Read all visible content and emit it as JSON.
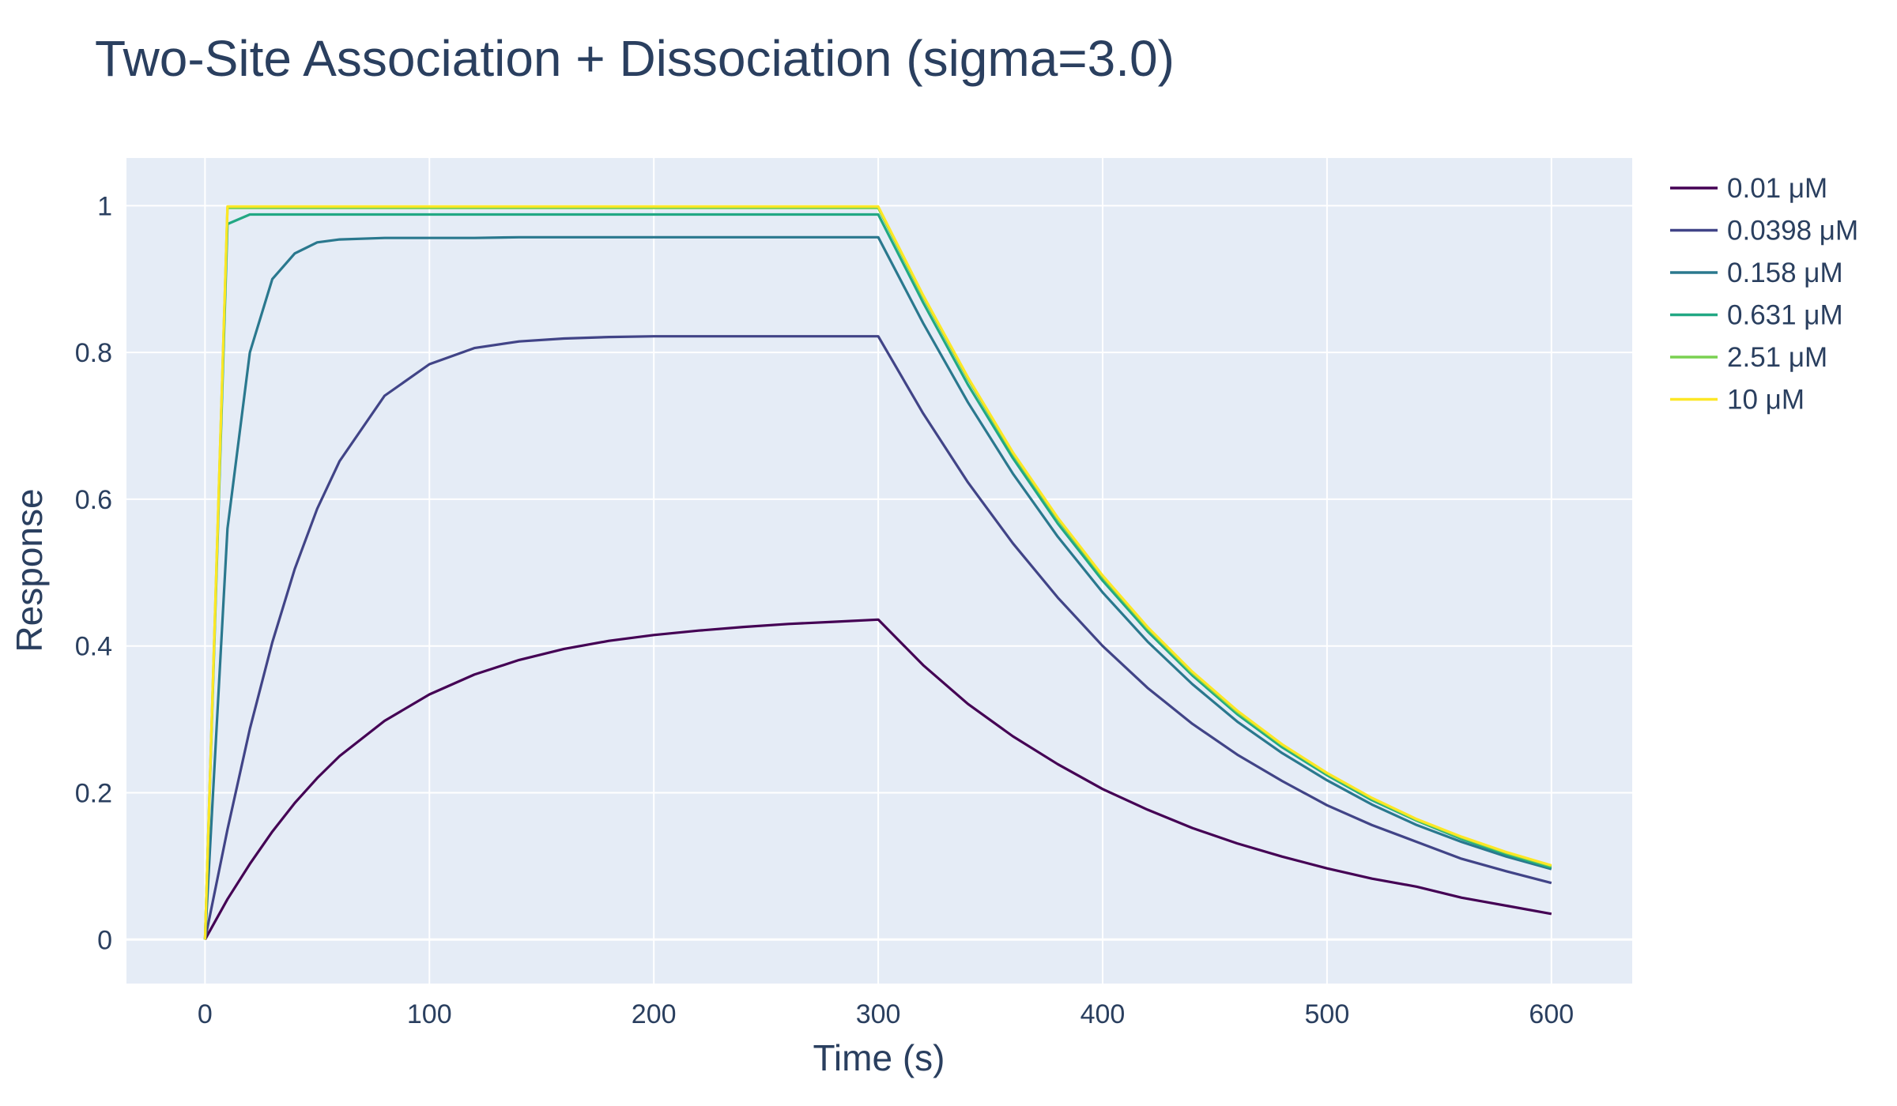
{
  "chart_data": {
    "type": "line",
    "title": "Two-Site Association + Dissociation (sigma=3.0)",
    "xlabel": "Time (s)",
    "ylabel": "Response",
    "xlim": [
      -35,
      636
    ],
    "ylim": [
      -0.06,
      1.065
    ],
    "x_ticks": [
      0,
      100,
      200,
      300,
      400,
      500,
      600
    ],
    "y_ticks": [
      0,
      0.2,
      0.4,
      0.6,
      0.8,
      1
    ],
    "x_tick_labels": [
      "0",
      "100",
      "200",
      "300",
      "400",
      "500",
      "600"
    ],
    "y_tick_labels": [
      "0",
      "0.2",
      "0.4",
      "0.6",
      "0.8",
      "1"
    ],
    "grid": true,
    "legend_position": "right",
    "colors": {
      "plot_background": "#e5ecf6",
      "grid": "#ffffff",
      "text": "#2a3f5f"
    },
    "x": [
      0,
      10,
      20,
      30,
      40,
      50,
      60,
      80,
      100,
      120,
      140,
      160,
      180,
      200,
      220,
      240,
      260,
      280,
      300,
      320,
      340,
      360,
      380,
      400,
      420,
      440,
      460,
      480,
      500,
      520,
      540,
      560,
      580,
      600
    ],
    "series": [
      {
        "name": "0.01 μM",
        "color": "#440154",
        "values": [
          0,
          0.055,
          0.103,
          0.147,
          0.186,
          0.22,
          0.25,
          0.298,
          0.334,
          0.361,
          0.381,
          0.396,
          0.407,
          0.415,
          0.421,
          0.426,
          0.43,
          0.433,
          0.436,
          0.374,
          0.321,
          0.277,
          0.239,
          0.205,
          0.177,
          0.152,
          0.131,
          0.113,
          0.097,
          0.083,
          0.072,
          0.057,
          0.046,
          0.035
        ]
      },
      {
        "name": "0.0398 μM",
        "color": "#414487",
        "values": [
          0,
          0.15,
          0.287,
          0.405,
          0.505,
          0.587,
          0.652,
          0.741,
          0.784,
          0.806,
          0.815,
          0.819,
          0.821,
          0.822,
          0.822,
          0.822,
          0.822,
          0.822,
          0.822,
          0.717,
          0.623,
          0.54,
          0.466,
          0.4,
          0.343,
          0.294,
          0.252,
          0.216,
          0.183,
          0.156,
          0.133,
          0.11,
          0.093,
          0.077
        ]
      },
      {
        "name": "0.158 μM",
        "color": "#2a788e",
        "values": [
          0,
          0.56,
          0.8,
          0.9,
          0.935,
          0.95,
          0.954,
          0.956,
          0.956,
          0.956,
          0.957,
          0.957,
          0.957,
          0.957,
          0.957,
          0.957,
          0.957,
          0.957,
          0.957,
          0.84,
          0.732,
          0.635,
          0.549,
          0.473,
          0.406,
          0.348,
          0.297,
          0.254,
          0.217,
          0.184,
          0.156,
          0.133,
          0.113,
          0.096
        ]
      },
      {
        "name": "0.631 μM",
        "color": "#22a884",
        "values": [
          0,
          0.975,
          0.988,
          0.988,
          0.988,
          0.988,
          0.988,
          0.988,
          0.988,
          0.988,
          0.988,
          0.988,
          0.988,
          0.988,
          0.988,
          0.988,
          0.988,
          0.988,
          0.988,
          0.868,
          0.756,
          0.656,
          0.567,
          0.489,
          0.42,
          0.36,
          0.307,
          0.262,
          0.224,
          0.19,
          0.162,
          0.137,
          0.116,
          0.098
        ]
      },
      {
        "name": "2.51 μM",
        "color": "#7ad151",
        "values": [
          0,
          0.997,
          0.997,
          0.997,
          0.997,
          0.997,
          0.997,
          0.997,
          0.997,
          0.997,
          0.997,
          0.997,
          0.997,
          0.997,
          0.997,
          0.997,
          0.997,
          0.997,
          0.997,
          0.876,
          0.764,
          0.662,
          0.573,
          0.494,
          0.424,
          0.363,
          0.31,
          0.265,
          0.226,
          0.192,
          0.163,
          0.139,
          0.118,
          0.1
        ]
      },
      {
        "name": "10 μM",
        "color": "#fde725",
        "values": [
          0,
          0.999,
          0.999,
          0.999,
          0.999,
          0.999,
          0.999,
          0.999,
          0.999,
          0.999,
          0.999,
          0.999,
          0.999,
          0.999,
          0.999,
          0.999,
          0.999,
          0.999,
          0.999,
          0.878,
          0.766,
          0.664,
          0.575,
          0.496,
          0.426,
          0.365,
          0.312,
          0.266,
          0.227,
          0.193,
          0.164,
          0.14,
          0.119,
          0.101
        ]
      }
    ]
  }
}
